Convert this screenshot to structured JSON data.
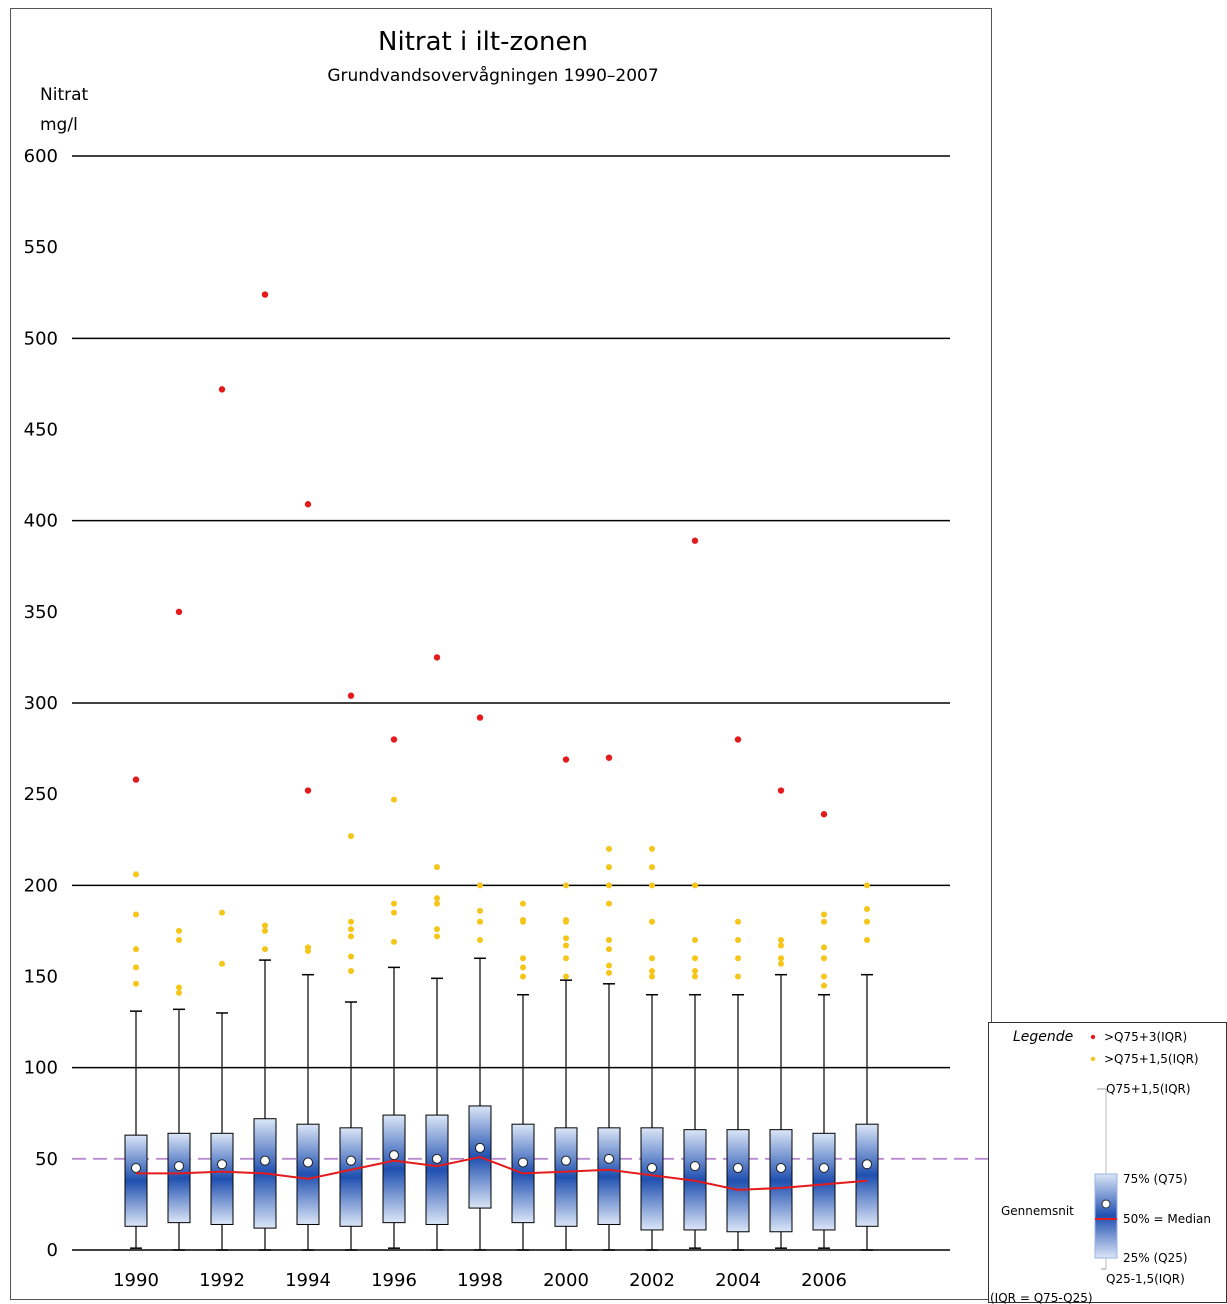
{
  "chart_data": {
    "type": "box",
    "title": "Nitrat i ilt-zonen",
    "subtitle": "Grundvandsovervågningen 1990–2007",
    "ylabel_line1": "Nitrat",
    "ylabel_line2": "mg/l",
    "xlabel": "",
    "ylim": [
      0,
      600
    ],
    "yticks": [
      0,
      50,
      100,
      150,
      200,
      250,
      300,
      350,
      400,
      450,
      500,
      550,
      600
    ],
    "xtick_labels": [
      "1990",
      "1992",
      "1994",
      "1996",
      "1998",
      "2000",
      "2002",
      "2004",
      "2006"
    ],
    "xtick_years": [
      1990,
      1992,
      1994,
      1996,
      1998,
      2000,
      2002,
      2004,
      2006
    ],
    "grid_values": [
      0,
      100,
      200,
      300,
      400,
      500,
      600
    ],
    "reference_line": 50,
    "colors": {
      "median_line": "#e41a1c",
      "extreme_outlier": "#e41a1c",
      "outlier": "#f5c518",
      "box_edge": "#3a72c6",
      "box_center": "#1f4fb0",
      "box_light": "#dbe6f7",
      "reference_line": "#b98bd0"
    },
    "boxes": [
      {
        "year": 1990,
        "whisker_low": 1,
        "q25": 13,
        "median": 42,
        "mean": 45,
        "q75": 63,
        "whisker_high": 131,
        "outliers": [
          146,
          155,
          165,
          184,
          206
        ],
        "extremes": [
          258
        ]
      },
      {
        "year": 1991,
        "whisker_low": 0,
        "q25": 15,
        "median": 42,
        "mean": 46,
        "q75": 64,
        "whisker_high": 132,
        "outliers": [
          141,
          144,
          170,
          175
        ],
        "extremes": [
          350
        ]
      },
      {
        "year": 1992,
        "whisker_low": 0,
        "q25": 14,
        "median": 43,
        "mean": 47,
        "q75": 64,
        "whisker_high": 130,
        "outliers": [
          157,
          185
        ],
        "extremes": [
          472
        ]
      },
      {
        "year": 1993,
        "whisker_low": 0,
        "q25": 12,
        "median": 42,
        "mean": 49,
        "q75": 72,
        "whisker_high": 159,
        "outliers": [
          165,
          175,
          178
        ],
        "extremes": [
          524
        ]
      },
      {
        "year": 1994,
        "whisker_low": 0,
        "q25": 14,
        "median": 39,
        "mean": 48,
        "q75": 69,
        "whisker_high": 151,
        "outliers": [
          164,
          166
        ],
        "extremes": [
          252,
          409
        ]
      },
      {
        "year": 1995,
        "whisker_low": 0,
        "q25": 13,
        "median": 44,
        "mean": 49,
        "q75": 67,
        "whisker_high": 136,
        "outliers": [
          153,
          161,
          172,
          176,
          180,
          227
        ],
        "extremes": [
          304
        ]
      },
      {
        "year": 1996,
        "whisker_low": 1,
        "q25": 15,
        "median": 49,
        "mean": 52,
        "q75": 74,
        "whisker_high": 155,
        "outliers": [
          169,
          185,
          190,
          247
        ],
        "extremes": [
          280
        ]
      },
      {
        "year": 1997,
        "whisker_low": 0,
        "q25": 14,
        "median": 46,
        "mean": 50,
        "q75": 74,
        "whisker_high": 149,
        "outliers": [
          172,
          176,
          190,
          193,
          210
        ],
        "extremes": [
          325
        ]
      },
      {
        "year": 1998,
        "whisker_low": 0,
        "q25": 23,
        "median": 51,
        "mean": 56,
        "q75": 79,
        "whisker_high": 160,
        "outliers": [
          170,
          180,
          186,
          200
        ],
        "extremes": [
          292
        ]
      },
      {
        "year": 1999,
        "whisker_low": 0,
        "q25": 15,
        "median": 42,
        "mean": 48,
        "q75": 69,
        "whisker_high": 140,
        "outliers": [
          150,
          155,
          160,
          180,
          181,
          190
        ],
        "extremes": []
      },
      {
        "year": 2000,
        "whisker_low": 0,
        "q25": 13,
        "median": 43,
        "mean": 49,
        "q75": 67,
        "whisker_high": 148,
        "outliers": [
          150,
          160,
          167,
          171,
          180,
          181,
          200
        ],
        "extremes": [
          269
        ]
      },
      {
        "year": 2001,
        "whisker_low": 0,
        "q25": 14,
        "median": 44,
        "mean": 50,
        "q75": 67,
        "whisker_high": 146,
        "outliers": [
          152,
          156,
          165,
          170,
          190,
          200,
          210,
          220
        ],
        "extremes": [
          270
        ]
      },
      {
        "year": 2002,
        "whisker_low": 0,
        "q25": 11,
        "median": 41,
        "mean": 45,
        "q75": 67,
        "whisker_high": 140,
        "outliers": [
          150,
          153,
          160,
          180,
          200,
          210,
          220
        ],
        "extremes": []
      },
      {
        "year": 2003,
        "whisker_low": 1,
        "q25": 11,
        "median": 38,
        "mean": 46,
        "q75": 66,
        "whisker_high": 140,
        "outliers": [
          150,
          153,
          160,
          170,
          200
        ],
        "extremes": [
          389
        ]
      },
      {
        "year": 2004,
        "whisker_low": 0,
        "q25": 10,
        "median": 33,
        "mean": 45,
        "q75": 66,
        "whisker_high": 140,
        "outliers": [
          150,
          160,
          170,
          180
        ],
        "extremes": [
          280
        ]
      },
      {
        "year": 2005,
        "whisker_low": 1,
        "q25": 10,
        "median": 34,
        "mean": 45,
        "q75": 66,
        "whisker_high": 151,
        "outliers": [
          157,
          160,
          167,
          170
        ],
        "extremes": [
          252
        ]
      },
      {
        "year": 2006,
        "whisker_low": 1,
        "q25": 11,
        "median": 36,
        "mean": 45,
        "q75": 64,
        "whisker_high": 140,
        "outliers": [
          145,
          150,
          160,
          166,
          180,
          184
        ],
        "extremes": [
          239
        ]
      },
      {
        "year": 2007,
        "whisker_low": 0,
        "q25": 13,
        "median": 38,
        "mean": 47,
        "q75": 69,
        "whisker_high": 151,
        "outliers": [
          170,
          180,
          187,
          200
        ],
        "extremes": []
      }
    ]
  },
  "legend": {
    "heading": "Legende",
    "extreme_label": ">Q75+3(IQR)",
    "outlier_label": ">Q75+1,5(IQR)",
    "upper_whisker_label": "Q75+1,5(IQR)",
    "q75_label": "75% (Q75)",
    "median_label": "50% = Median",
    "q25_label": "25% (Q25)",
    "lower_whisker_label": "Q25-1,5(IQR)",
    "mean_label": "Gennemsnit",
    "iqr_note": "(IQR = Q75-Q25)"
  }
}
